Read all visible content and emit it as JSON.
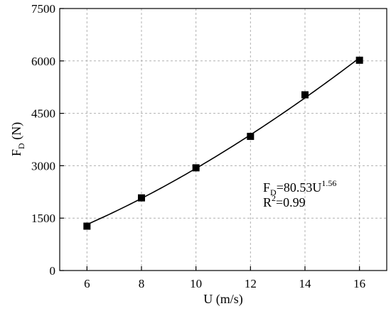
{
  "chart_data": {
    "type": "scatter",
    "x": [
      6,
      8,
      10,
      12,
      14,
      16
    ],
    "y": [
      1270,
      2080,
      2940,
      3840,
      5030,
      6020
    ],
    "xlim": [
      5,
      17
    ],
    "ylim": [
      0,
      7500
    ],
    "xticks": [
      6,
      8,
      10,
      12,
      14,
      16
    ],
    "yticks": [
      0,
      1500,
      3000,
      4500,
      6000,
      7500
    ],
    "xlabel": "U (m/s)",
    "ylabel": {
      "main": "F",
      "sub": "D",
      "unit": " (N)"
    },
    "grid": true,
    "marker": "square",
    "marker_color": "#000000",
    "fit": {
      "type": "power",
      "coefficient": 80.53,
      "exponent": 1.56,
      "equation": {
        "lhs": "F",
        "lhs_sub": "D",
        "mid": "=80.53U",
        "sup": "1.56"
      },
      "r2": {
        "lhs": "R",
        "sup": "2",
        "rhs": "=0.99"
      }
    }
  }
}
